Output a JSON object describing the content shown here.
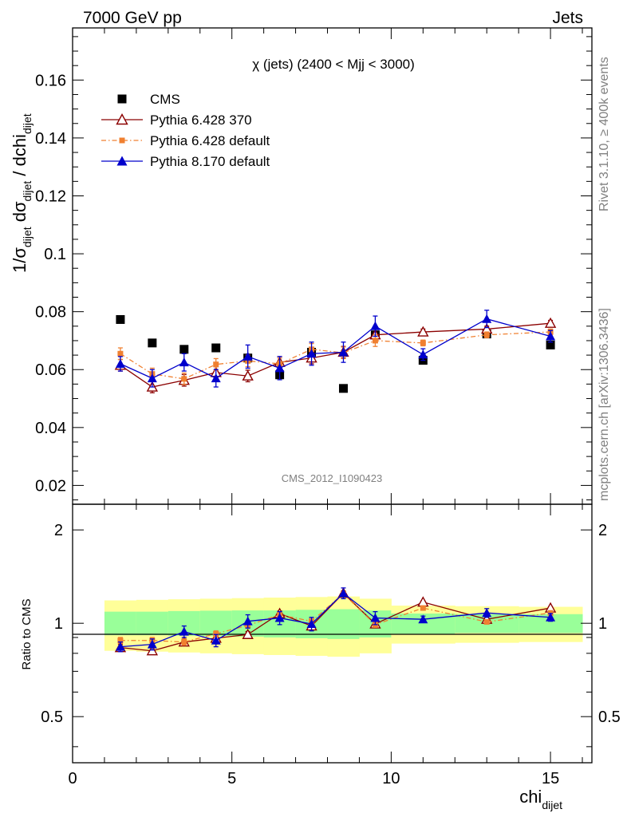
{
  "header": {
    "left": "7000 GeV pp",
    "right": "Jets"
  },
  "side_labels": {
    "rivet": "Rivet 3.1.10, ≥ 400k events",
    "mcplots": "mcplots.cern.ch [arXiv:1306.3436]"
  },
  "watermark": "CMS_2012_I1090423",
  "chart_data": [
    {
      "type": "scatter",
      "panel": "main",
      "title": "χ (jets) (2400 < Mjj < 3000)",
      "ylabel_parts": [
        "1/σ",
        "dijet",
        " dσ",
        "dijet",
        " / dchi",
        "dijet"
      ],
      "xlabel_parts": [
        "chi",
        "dijet"
      ],
      "xlim": [
        0,
        16.3
      ],
      "ylim": [
        0.0135,
        0.178
      ],
      "yticks": [
        0.02,
        0.04,
        0.06,
        0.08,
        0.1,
        0.12,
        0.14,
        0.16
      ],
      "ytick_labels": [
        "0.02",
        "0.04",
        "0.06",
        "0.08",
        "0.1",
        "0.12",
        "0.14",
        "0.16"
      ],
      "x": [
        1.5,
        2.5,
        3.5,
        4.5,
        5.5,
        6.5,
        7.5,
        8.5,
        9.5,
        11.0,
        13.0,
        15.0
      ],
      "series": [
        {
          "name": "CMS",
          "color": "#000000",
          "marker": "square",
          "line": "none",
          "values": [
            0.0773,
            0.0692,
            0.067,
            0.0675,
            0.064,
            0.0582,
            0.066,
            0.0535,
            0.072,
            0.0632,
            0.0723,
            0.0685
          ],
          "errors": [
            0,
            0,
            0,
            0,
            0,
            0,
            0,
            0,
            0,
            0,
            0,
            0
          ]
        },
        {
          "name": "Pythia 6.428 370",
          "color": "#8b0000",
          "marker": "triangle-open",
          "line": "solid",
          "values": [
            0.0615,
            0.054,
            0.0563,
            0.059,
            0.0578,
            0.0625,
            0.064,
            0.066,
            0.072,
            0.073,
            0.074,
            0.076
          ],
          "errors": [
            0.002,
            0.002,
            0.002,
            0.002,
            0.002,
            0.002,
            0.002,
            0.002,
            0.002,
            0.001,
            0.001,
            0.001
          ]
        },
        {
          "name": "Pythia 6.428 default",
          "color": "#f08030",
          "marker": "square-small",
          "line": "dashdot",
          "values": [
            0.0655,
            0.0585,
            0.0568,
            0.0618,
            0.063,
            0.062,
            0.067,
            0.0658,
            0.07,
            0.0692,
            0.072,
            0.073
          ],
          "errors": [
            0.002,
            0.002,
            0.002,
            0.002,
            0.002,
            0.002,
            0.002,
            0.002,
            0.002,
            0.001,
            0.001,
            0.001
          ]
        },
        {
          "name": "Pythia 8.170 default",
          "color": "#0000cc",
          "marker": "triangle-filled",
          "line": "solid",
          "values": [
            0.062,
            0.057,
            0.0625,
            0.057,
            0.0645,
            0.0605,
            0.0655,
            0.066,
            0.075,
            0.0652,
            0.0775,
            0.0715
          ],
          "errors": [
            0.0025,
            0.003,
            0.003,
            0.003,
            0.004,
            0.004,
            0.004,
            0.0035,
            0.0035,
            0.002,
            0.003,
            0.002
          ]
        }
      ]
    },
    {
      "type": "scatter",
      "panel": "ratio",
      "ylabel": "Ratio to CMS",
      "xlim": [
        0,
        16.3
      ],
      "ylim": [
        0.355,
        2.42
      ],
      "yscale": "log",
      "yticks": [
        0.5,
        1,
        2
      ],
      "ytick_labels": [
        "0.5",
        "1",
        "2"
      ],
      "xticks": [
        0,
        5,
        10,
        15
      ],
      "xtick_labels": [
        "0",
        "5",
        "10",
        "15"
      ],
      "x": [
        1.5,
        2.5,
        3.5,
        4.5,
        5.5,
        6.5,
        7.5,
        8.5,
        9.5,
        11.0,
        13.0,
        15.0
      ],
      "band_edges": [
        1,
        2,
        3,
        4,
        5,
        6,
        7,
        8,
        9,
        10,
        12,
        14,
        16
      ],
      "band_inner": [
        [
          0.915,
          1.09
        ],
        [
          0.915,
          1.09
        ],
        [
          0.912,
          1.095
        ],
        [
          0.91,
          1.098
        ],
        [
          0.905,
          1.1
        ],
        [
          0.9,
          1.1
        ],
        [
          0.895,
          1.105
        ],
        [
          0.89,
          1.11
        ],
        [
          0.9,
          1.1
        ],
        [
          0.925,
          1.075
        ],
        [
          0.93,
          1.07
        ],
        [
          0.93,
          1.07
        ]
      ],
      "band_outer": [
        [
          0.815,
          1.185
        ],
        [
          0.81,
          1.19
        ],
        [
          0.805,
          1.195
        ],
        [
          0.8,
          1.2
        ],
        [
          0.795,
          1.205
        ],
        [
          0.79,
          1.21
        ],
        [
          0.785,
          1.215
        ],
        [
          0.78,
          1.22
        ],
        [
          0.8,
          1.2
        ],
        [
          0.86,
          1.14
        ],
        [
          0.865,
          1.135
        ],
        [
          0.87,
          1.13
        ]
      ],
      "series": [
        {
          "name": "Pythia 6.428 370",
          "color": "#8b0000",
          "marker": "triangle-open",
          "line": "solid",
          "values": [
            0.835,
            0.815,
            0.87,
            0.895,
            0.92,
            1.075,
            0.98,
            1.25,
            0.995,
            1.17,
            1.03,
            1.12
          ],
          "errors": [
            0.02,
            0.02,
            0.02,
            0.02,
            0.02,
            0.02,
            0.02,
            0.02,
            0.02,
            0.01,
            0.01,
            0.01
          ]
        },
        {
          "name": "Pythia 6.428 default",
          "color": "#f08030",
          "marker": "square-small",
          "line": "dashdot",
          "values": [
            0.88,
            0.88,
            0.87,
            0.925,
            0.985,
            1.065,
            1.015,
            1.245,
            0.99,
            1.12,
            1.01,
            1.08
          ],
          "errors": [
            0.02,
            0.02,
            0.02,
            0.02,
            0.02,
            0.02,
            0.02,
            0.02,
            0.02,
            0.01,
            0.01,
            0.01
          ]
        },
        {
          "name": "Pythia 8.170 default",
          "color": "#0000cc",
          "marker": "triangle-filled",
          "line": "solid",
          "values": [
            0.84,
            0.855,
            0.94,
            0.88,
            1.015,
            1.04,
            0.995,
            1.25,
            1.04,
            1.03,
            1.08,
            1.045
          ],
          "errors": [
            0.03,
            0.035,
            0.04,
            0.04,
            0.05,
            0.05,
            0.05,
            0.05,
            0.05,
            0.025,
            0.035,
            0.03
          ]
        }
      ]
    }
  ]
}
